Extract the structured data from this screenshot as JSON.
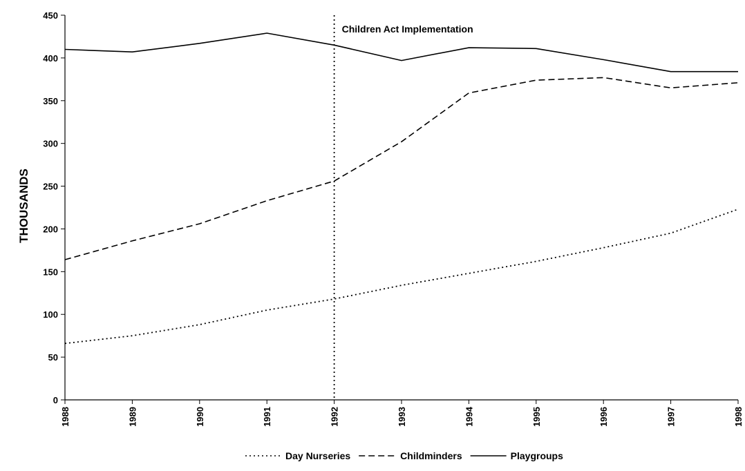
{
  "chart_data": {
    "type": "line",
    "title": "",
    "xlabel": "",
    "ylabel": "THOUSANDS",
    "ylim": [
      0,
      450
    ],
    "yticks": [
      0,
      50,
      100,
      150,
      200,
      250,
      300,
      350,
      400,
      450
    ],
    "grid": false,
    "legend_position": "bottom",
    "x": [
      "1988",
      "1989",
      "1990",
      "1991",
      "1992",
      "1993",
      "1994",
      "1995",
      "1996",
      "1997",
      "1998"
    ],
    "series": [
      {
        "name": "Day Nurseries",
        "style": "dotted",
        "color": "#000000",
        "values": [
          66,
          75,
          88,
          105,
          118,
          134,
          148,
          162,
          178,
          195,
          223
        ]
      },
      {
        "name": "Childminders",
        "style": "dashed",
        "color": "#000000",
        "values": [
          164,
          186,
          206,
          233,
          256,
          302,
          359,
          374,
          377,
          365,
          371
        ]
      },
      {
        "name": "Playgroups",
        "style": "solid",
        "color": "#000000",
        "values": [
          410,
          407,
          417,
          429,
          415,
          397,
          412,
          411,
          398,
          384,
          384
        ]
      }
    ],
    "annotations": [
      {
        "text": "Children Act Implementation",
        "x": "1992",
        "line_style": "dotted"
      }
    ]
  }
}
